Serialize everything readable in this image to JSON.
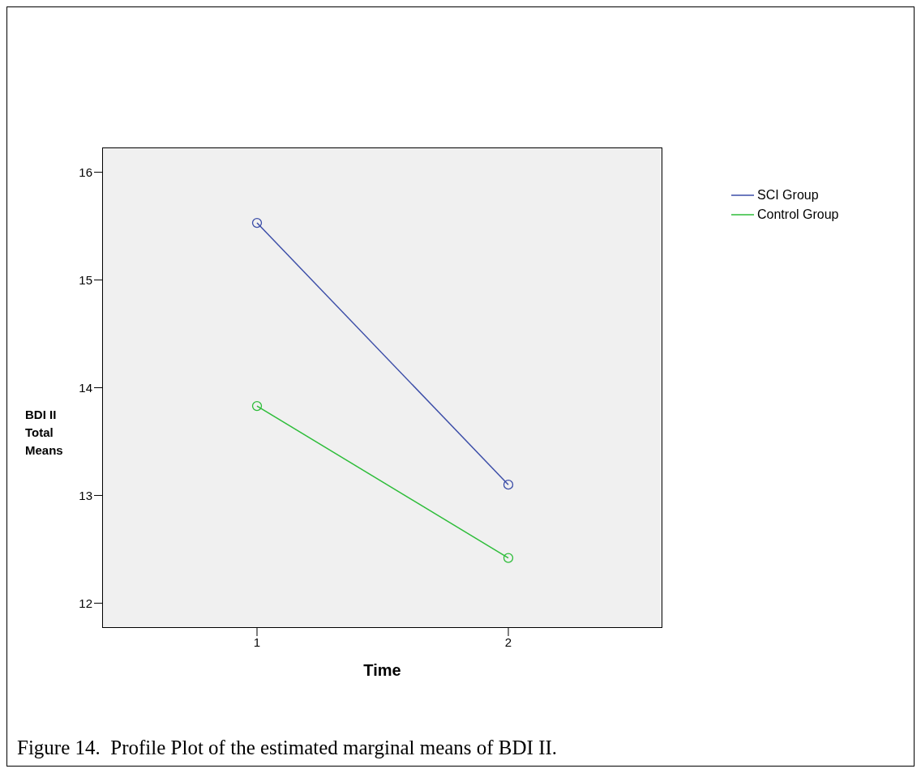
{
  "chart_data": {
    "type": "line",
    "xlabel": "Time",
    "ylabel": "BDI II Total Means",
    "categories": [
      "1",
      "2"
    ],
    "series": [
      {
        "name": "SCI Group",
        "color": "#3c4ea8",
        "values": [
          15.53,
          13.1
        ]
      },
      {
        "name": "Control Group",
        "color": "#2ebd3a",
        "values": [
          13.83,
          12.42
        ]
      }
    ],
    "ylim": [
      11.77,
      16.23
    ],
    "yticks": [
      12,
      13,
      14,
      15,
      16
    ],
    "grid": false,
    "legend": "top right",
    "marker": "circle",
    "line_style": "solid",
    "annotations": [
      "Figure 14.  Profile Plot of the estimated marginal means of BDI II."
    ]
  }
}
